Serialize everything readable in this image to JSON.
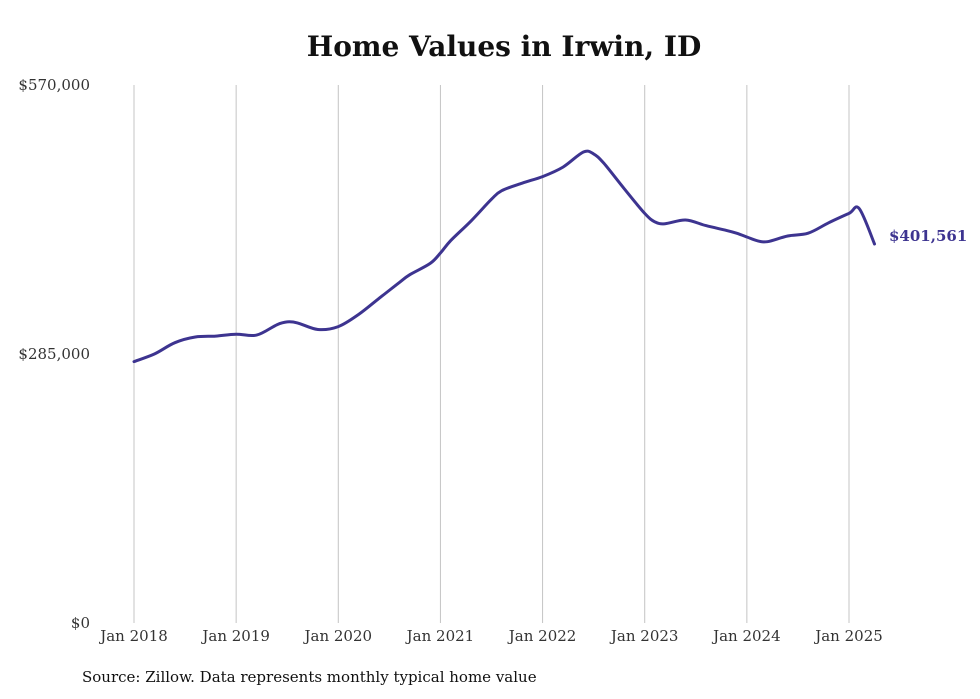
{
  "chart_data": {
    "type": "line",
    "title": "Home Values in Irwin, ID",
    "xlabel": "",
    "ylabel": "",
    "ylim": [
      0,
      570000
    ],
    "y_ticks": [
      {
        "value": 0,
        "label": "$0"
      },
      {
        "value": 285000,
        "label": "$285,000"
      },
      {
        "value": 570000,
        "label": "$570,000"
      }
    ],
    "x_ticks": [
      {
        "value": 2018.0,
        "label": "Jan 2018"
      },
      {
        "value": 2019.0,
        "label": "Jan 2019"
      },
      {
        "value": 2020.0,
        "label": "Jan 2020"
      },
      {
        "value": 2021.0,
        "label": "Jan 2021"
      },
      {
        "value": 2022.0,
        "label": "Jan 2022"
      },
      {
        "value": 2023.0,
        "label": "Jan 2023"
      },
      {
        "value": 2024.0,
        "label": "Jan 2024"
      },
      {
        "value": 2025.0,
        "label": "Jan 2025"
      }
    ],
    "grid": "vertical",
    "series": [
      {
        "color": "#3d3490",
        "x": [
          2018.0,
          2018.2,
          2018.4,
          2018.6,
          2018.8,
          2019.0,
          2019.2,
          2019.4,
          2019.5,
          2019.6,
          2019.8,
          2020.0,
          2020.2,
          2020.4,
          2020.6,
          2020.7,
          2020.9,
          2021.0,
          2021.1,
          2021.3,
          2021.5,
          2021.6,
          2021.8,
          2022.0,
          2022.2,
          2022.4,
          2022.5,
          2022.6,
          2022.8,
          2023.0,
          2023.1,
          2023.2,
          2023.4,
          2023.6,
          2023.8,
          2023.9,
          2024.0,
          2024.1,
          2024.2,
          2024.4,
          2024.6,
          2024.8,
          2025.0,
          2025.1,
          2025.25
        ],
        "values": [
          277000,
          285000,
          297000,
          303000,
          304000,
          306000,
          305000,
          316000,
          319000,
          318000,
          311000,
          314000,
          327000,
          344000,
          361000,
          369000,
          381000,
          392000,
          405000,
          426000,
          449000,
          458000,
          466000,
          473000,
          483000,
          499000,
          497000,
          487000,
          460000,
          434000,
          425000,
          423000,
          427000,
          421000,
          416000,
          413000,
          409000,
          405000,
          404000,
          410000,
          413000,
          424000,
          434000,
          439000,
          401561
        ]
      }
    ],
    "annotations": [
      {
        "text": "$401,561"
      }
    ]
  },
  "source_note": "Source: Zillow. Data represents monthly typical home value"
}
